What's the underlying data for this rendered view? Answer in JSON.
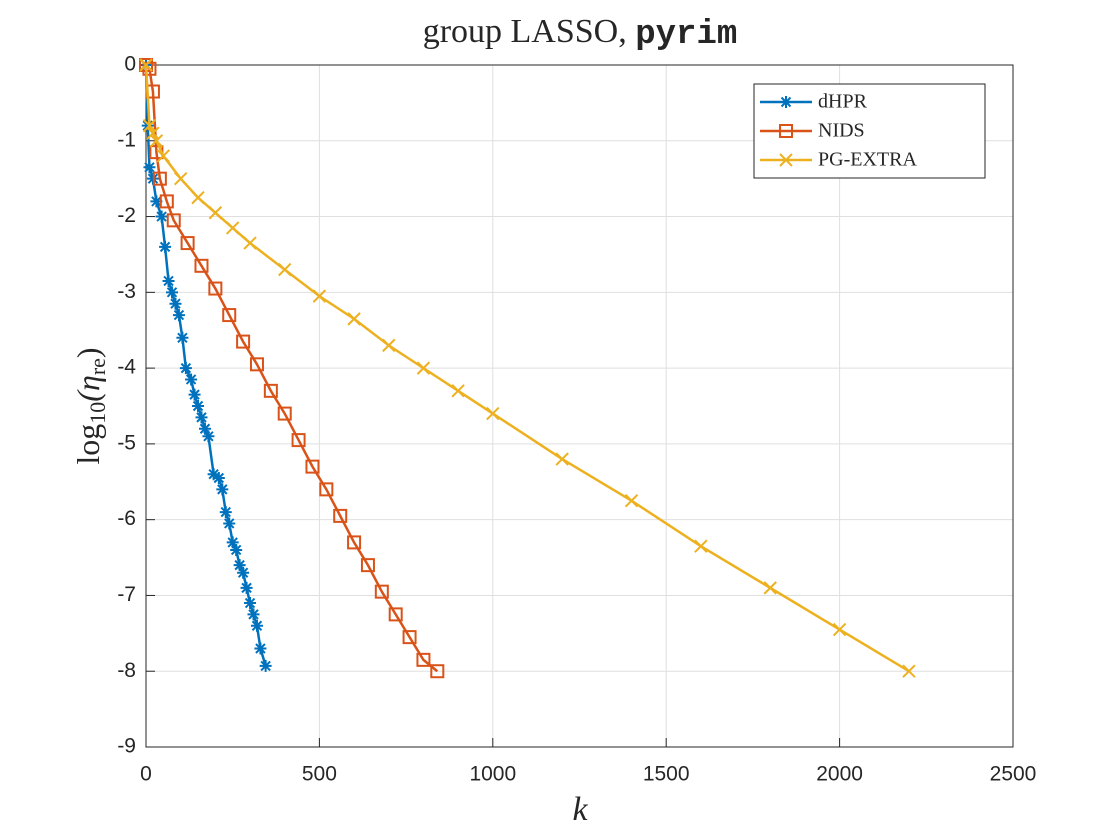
{
  "chart_data": {
    "type": "line",
    "title": {
      "text": "group LASSO,",
      "code": "pyrim"
    },
    "xlabel": "k",
    "ylabel": [
      "log",
      "10",
      "(η",
      "re",
      ")"
    ],
    "xlim": [
      0,
      2500
    ],
    "xticks": [
      0,
      500,
      1000,
      1500,
      2000,
      2500
    ],
    "ylim": [
      -9,
      0
    ],
    "yticks": [
      -9,
      -8,
      -7,
      -6,
      -5,
      -4,
      -3,
      -2,
      -1,
      0
    ],
    "grid": true,
    "legend": "upper right",
    "series": [
      {
        "name": "dHPR",
        "color": "#0072BD",
        "marker": "asterisk",
        "x": [
          0,
          5,
          10,
          20,
          30,
          45,
          55,
          65,
          75,
          85,
          95,
          105,
          115,
          130,
          140,
          150,
          160,
          170,
          180,
          195,
          210,
          220,
          230,
          240,
          250,
          260,
          270,
          280,
          290,
          300,
          310,
          320,
          330,
          345
        ],
        "values": [
          0,
          -0.8,
          -1.35,
          -1.5,
          -1.8,
          -2.0,
          -2.4,
          -2.85,
          -3.0,
          -3.15,
          -3.3,
          -3.6,
          -4.0,
          -4.15,
          -4.35,
          -4.5,
          -4.65,
          -4.8,
          -4.9,
          -5.4,
          -5.45,
          -5.6,
          -5.9,
          -6.05,
          -6.3,
          -6.4,
          -6.6,
          -6.7,
          -6.9,
          -7.1,
          -7.25,
          -7.4,
          -7.7,
          -7.93
        ]
      },
      {
        "name": "NIDS",
        "color": "#D95319",
        "marker": "square",
        "x": [
          0,
          10,
          20,
          30,
          40,
          60,
          80,
          120,
          160,
          200,
          240,
          280,
          320,
          360,
          400,
          440,
          480,
          520,
          560,
          600,
          640,
          680,
          720,
          760,
          800,
          840
        ],
        "values": [
          0,
          -0.05,
          -0.35,
          -1.15,
          -1.5,
          -1.8,
          -2.05,
          -2.35,
          -2.65,
          -2.95,
          -3.3,
          -3.65,
          -3.95,
          -4.3,
          -4.6,
          -4.95,
          -5.3,
          -5.6,
          -5.95,
          -6.3,
          -6.6,
          -6.95,
          -7.25,
          -7.55,
          -7.85,
          -8.0
        ]
      },
      {
        "name": "PG-EXTRA",
        "color": "#EDB120",
        "marker": "x",
        "x": [
          0,
          10,
          20,
          30,
          50,
          100,
          150,
          200,
          250,
          300,
          400,
          500,
          600,
          700,
          800,
          900,
          1000,
          1200,
          1400,
          1600,
          1800,
          2000,
          2200
        ],
        "values": [
          0,
          -0.8,
          -0.9,
          -1.0,
          -1.2,
          -1.5,
          -1.75,
          -1.95,
          -2.15,
          -2.35,
          -2.7,
          -3.05,
          -3.35,
          -3.7,
          -4.0,
          -4.3,
          -4.6,
          -5.2,
          -5.75,
          -6.35,
          -6.9,
          -7.45,
          -8.0
        ]
      }
    ]
  }
}
